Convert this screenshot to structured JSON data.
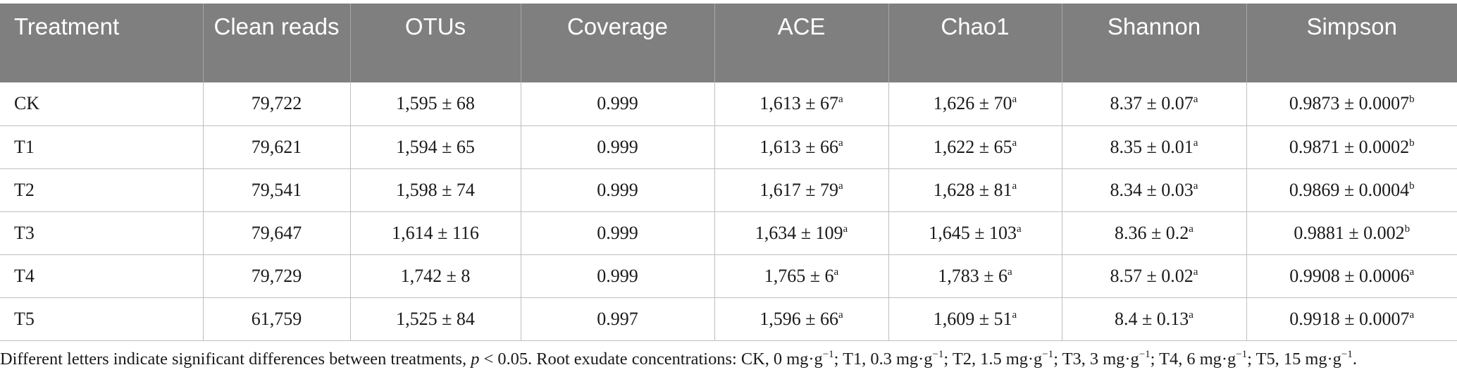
{
  "table": {
    "headers": [
      "Treatment",
      "Clean reads",
      "OTUs",
      "Coverage",
      "ACE",
      "Chao1",
      "Shannon",
      "Simpson"
    ],
    "rows": [
      {
        "treatment": "CK",
        "clean_reads": "79,722",
        "otus": "1,595 ± 68",
        "coverage": "0.999",
        "ace": "1,613 ± 67",
        "ace_sup": "a",
        "chao1": "1,626 ± 70",
        "chao1_sup": "a",
        "shannon": "8.37 ± 0.07",
        "shannon_sup": "a",
        "simpson": "0.9873 ± 0.0007",
        "simpson_sup": "b"
      },
      {
        "treatment": "T1",
        "clean_reads": "79,621",
        "otus": "1,594 ± 65",
        "coverage": "0.999",
        "ace": "1,613 ± 66",
        "ace_sup": "a",
        "chao1": "1,622 ± 65",
        "chao1_sup": "a",
        "shannon": "8.35 ± 0.01",
        "shannon_sup": "a",
        "simpson": "0.9871 ± 0.0002",
        "simpson_sup": "b"
      },
      {
        "treatment": "T2",
        "clean_reads": "79,541",
        "otus": "1,598 ± 74",
        "coverage": "0.999",
        "ace": "1,617 ± 79",
        "ace_sup": "a",
        "chao1": "1,628 ± 81",
        "chao1_sup": "a",
        "shannon": "8.34 ± 0.03",
        "shannon_sup": "a",
        "simpson": "0.9869 ± 0.0004",
        "simpson_sup": "b"
      },
      {
        "treatment": "T3",
        "clean_reads": "79,647",
        "otus": "1,614 ± 116",
        "coverage": "0.999",
        "ace": "1,634 ± 109",
        "ace_sup": "a",
        "chao1": "1,645 ± 103",
        "chao1_sup": "a",
        "shannon": "8.36 ± 0.2",
        "shannon_sup": "a",
        "simpson": "0.9881 ± 0.002",
        "simpson_sup": "b"
      },
      {
        "treatment": "T4",
        "clean_reads": "79,729",
        "otus": "1,742 ± 8",
        "coverage": "0.999",
        "ace": "1,765 ± 6",
        "ace_sup": "a",
        "chao1": "1,783 ± 6",
        "chao1_sup": "a",
        "shannon": "8.57 ± 0.02",
        "shannon_sup": "a",
        "simpson": "0.9908 ± 0.0006",
        "simpson_sup": "a"
      },
      {
        "treatment": "T5",
        "clean_reads": "61,759",
        "otus": "1,525 ± 84",
        "coverage": "0.997",
        "ace": "1,596 ± 66",
        "ace_sup": "a",
        "chao1": "1,609 ± 51",
        "chao1_sup": "a",
        "shannon": "8.4 ± 0.13",
        "shannon_sup": "a",
        "simpson": "0.9918 ± 0.0007",
        "simpson_sup": "a"
      }
    ]
  },
  "footnote": {
    "part1": "Different letters indicate significant differences between treatments, ",
    "p": "p",
    "part2": " < 0.05. Root exudate concentrations: CK, 0 mg·g",
    "sup1": "−1",
    "part3": "; T1, 0.3 mg·g",
    "sup2": "−1",
    "part4": "; T2, 1.5 mg·g",
    "sup3": "−1",
    "part5": "; T3, 3 mg·g",
    "sup4": "−1",
    "part6": "; T4, 6 mg·g",
    "sup5": "−1",
    "part7": "; T5, 15 mg·g",
    "sup6": "−1",
    "part8": "."
  },
  "colors": {
    "header_bg": "#7f7f7f",
    "header_text": "#ffffff",
    "grid": "#bfbfbf"
  }
}
